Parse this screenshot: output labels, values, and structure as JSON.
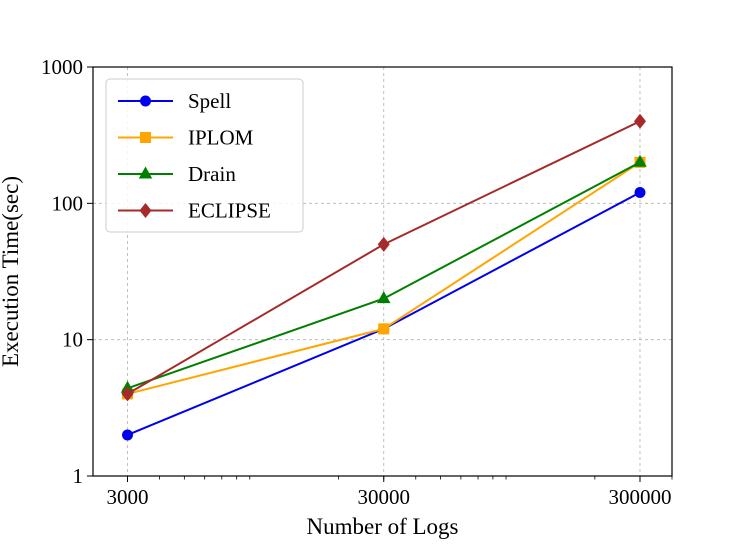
{
  "chart_data": {
    "type": "line",
    "xlabel": "Number of Logs",
    "ylabel": "Execution Time(sec)",
    "x_scale": "log",
    "y_scale": "log",
    "xlim": [
      2200,
      400000
    ],
    "ylim": [
      1,
      1000
    ],
    "x": [
      3000,
      30000,
      300000
    ],
    "x_tick_labels": [
      "3000",
      "30000",
      "300000"
    ],
    "y_ticks": [
      1,
      10,
      100,
      1000
    ],
    "y_tick_labels": [
      "1",
      "10",
      "100",
      "1000"
    ],
    "grid": true,
    "legend_position": "top-left",
    "series": [
      {
        "name": "Spell",
        "values": [
          2,
          12,
          120
        ],
        "color": "#0000ee",
        "marker": "circle"
      },
      {
        "name": "IPLOM",
        "values": [
          4,
          12,
          200
        ],
        "color": "#ffa500",
        "marker": "square"
      },
      {
        "name": "Drain",
        "values": [
          4.4,
          20,
          200
        ],
        "color": "#008000",
        "marker": "triangle"
      },
      {
        "name": "ECLIPSE",
        "values": [
          4,
          50,
          400
        ],
        "color": "#a52a2a",
        "marker": "diamond"
      }
    ]
  }
}
